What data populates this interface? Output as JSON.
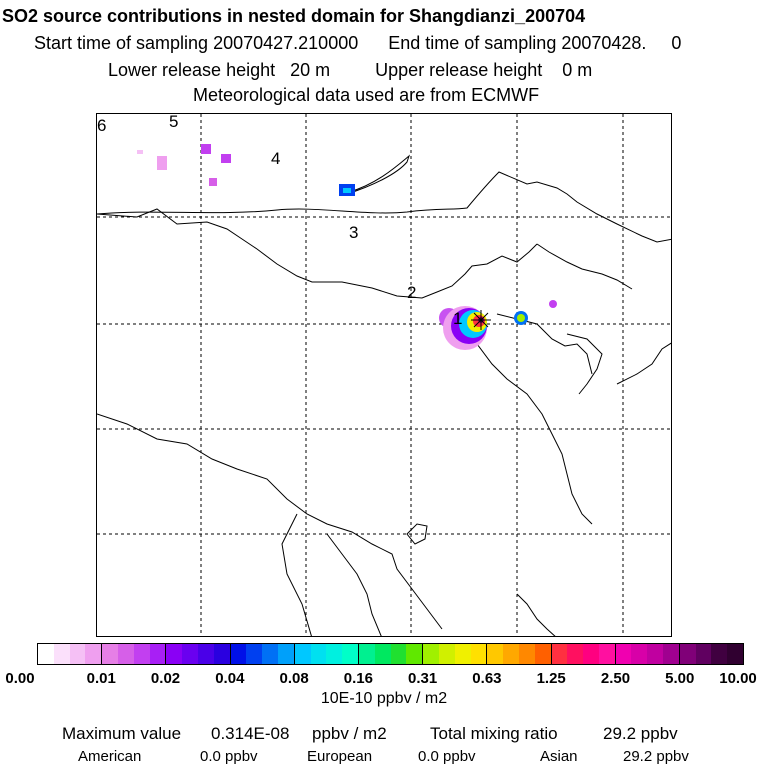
{
  "header": {
    "title": "SO2 source contributions in nested domain for Shangdianzi_200704",
    "start_label": "Start time of sampling 20070427.210000",
    "end_label": "End time of sampling 20070428.     0",
    "lower_release": "Lower release height   20 m",
    "upper_release": "Upper release height    0 m",
    "met_source": "Meteorological data used are from ECMWF"
  },
  "map": {
    "region_labels": [
      "1",
      "2",
      "3",
      "4",
      "5",
      "6"
    ],
    "station_marker": "star-icon"
  },
  "colorbar": {
    "ticks": [
      "0.00",
      "0.01",
      "0.02",
      "0.04",
      "0.08",
      "0.16",
      "0.31",
      "0.63",
      "1.25",
      "2.50",
      "5.00",
      "10.00"
    ],
    "colors": [
      "#ffffff",
      "#fbe0fb",
      "#f5c0f5",
      "#ef9fef",
      "#e67fe6",
      "#d65fe8",
      "#c23ff0",
      "#a81ff5",
      "#8a00f5",
      "#6a00f0",
      "#4a00e8",
      "#2a00e0",
      "#0010e8",
      "#0040f0",
      "#0070f5",
      "#00a0fa",
      "#00c8ff",
      "#00e0f0",
      "#00f0e0",
      "#00ffc8",
      "#00f090",
      "#00e860",
      "#20e030",
      "#60e800",
      "#a0f000",
      "#d0f000",
      "#f0f000",
      "#ffe000",
      "#ffc800",
      "#ffa800",
      "#ff8800",
      "#ff6000",
      "#ff3040",
      "#ff1060",
      "#ff0080",
      "#ff10a0",
      "#f000b0",
      "#d800a8",
      "#c000a0",
      "#a00090",
      "#800078",
      "#600060",
      "#400040",
      "#300030"
    ],
    "units": "10E-10 ppbv / m2"
  },
  "stats": {
    "max_label": "Maximum value",
    "max_value": "0.314E-08",
    "max_unit": "ppbv / m2",
    "total_label": "Total mixing ratio",
    "total_value": "29.2 ppbv",
    "american_label": "American",
    "american_value": "0.0 ppbv",
    "european_label": "European",
    "european_value": "0.0 ppbv",
    "asian_label": "Asian",
    "asian_value": "29.2 ppbv"
  }
}
